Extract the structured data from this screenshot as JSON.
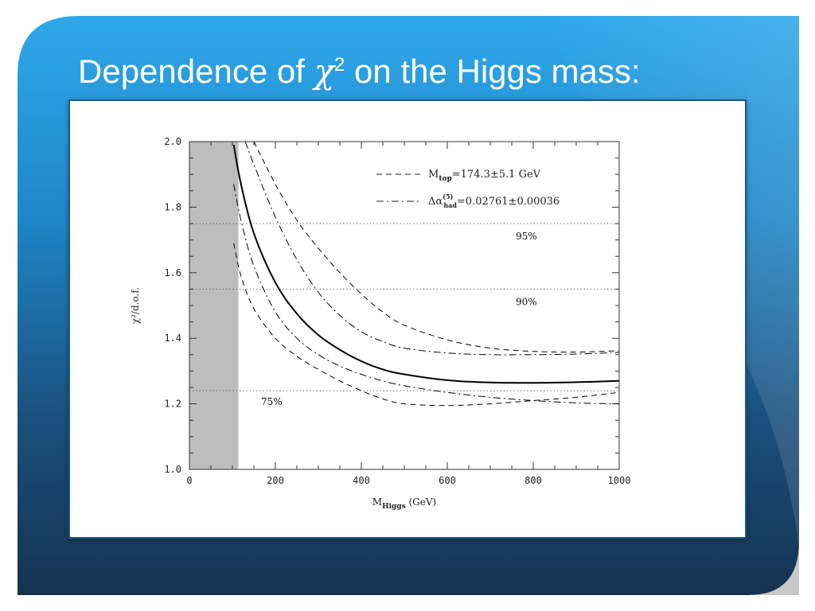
{
  "slide": {
    "title_text": "Dependence of ",
    "title_symbol": "χ",
    "title_sup": "2",
    "title_rest": " on the Higgs mass:"
  },
  "colors": {
    "background_top": "#2aa6e8",
    "background_bottom": "#153551",
    "panel_border": "#1a5a86",
    "excluded_region": "#bdbdbd",
    "curve": "#000000",
    "dotted_lines": "#555555"
  },
  "chart_data": {
    "type": "line",
    "xlabel": "M",
    "xlabel_sub": "Higgs",
    "xlabel_unit": "(GeV)",
    "ylabel": "χ²/d.o.f.",
    "xlim": [
      0,
      1000
    ],
    "ylim": [
      1.0,
      2.0
    ],
    "x_ticks": [
      0,
      200,
      400,
      600,
      800,
      1000
    ],
    "x_tick_labels": [
      "0",
      "200",
      "400",
      "600",
      "800",
      "1000"
    ],
    "y_ticks": [
      1.0,
      1.2,
      1.4,
      1.6,
      1.8,
      2.0
    ],
    "y_tick_labels": [
      "1.0",
      "1.2",
      "1.4",
      "1.6",
      "1.8",
      "2.0"
    ],
    "excluded_region": [
      0,
      114
    ],
    "confidence_levels": [
      {
        "label": "95%",
        "value": 1.75
      },
      {
        "label": "90%",
        "value": 1.55
      },
      {
        "label": "75%",
        "value": 1.24
      }
    ],
    "legend": {
      "placement": "top-right",
      "entries": [
        {
          "style": "dashed",
          "text": "M",
          "sub": "top",
          "rest": "=174.3±5.1 GeV"
        },
        {
          "style": "dashdot",
          "text": "Δα",
          "sup": "(5)",
          "sub": "had",
          "rest": "=0.02761±0.00036"
        }
      ]
    },
    "series": [
      {
        "style": "solid",
        "x": [
          103,
          120,
          150,
          200,
          250,
          300,
          350,
          400,
          450,
          500,
          600,
          700,
          800,
          900,
          1000
        ],
        "y": [
          1.99,
          1.87,
          1.72,
          1.57,
          1.475,
          1.41,
          1.365,
          1.33,
          1.305,
          1.29,
          1.272,
          1.265,
          1.264,
          1.266,
          1.27
        ]
      },
      {
        "style": "dashed",
        "x": [
          150,
          200,
          250,
          300,
          350,
          400,
          450,
          500,
          600,
          700,
          800,
          900,
          1000
        ],
        "y": [
          2.0,
          1.87,
          1.76,
          1.675,
          1.6,
          1.535,
          1.48,
          1.44,
          1.395,
          1.37,
          1.36,
          1.358,
          1.362
        ]
      },
      {
        "style": "dashed",
        "x": [
          103,
          120,
          150,
          200,
          250,
          300,
          350,
          400,
          450,
          500,
          600,
          700,
          800,
          900,
          1000
        ],
        "y": [
          1.69,
          1.59,
          1.49,
          1.4,
          1.345,
          1.305,
          1.27,
          1.24,
          1.215,
          1.2,
          1.195,
          1.2,
          1.21,
          1.22,
          1.235
        ]
      },
      {
        "style": "dashdot",
        "x": [
          130,
          150,
          200,
          250,
          300,
          350,
          400,
          450,
          500,
          600,
          700,
          800,
          900,
          1000
        ],
        "y": [
          2.0,
          1.93,
          1.77,
          1.64,
          1.54,
          1.47,
          1.42,
          1.39,
          1.37,
          1.355,
          1.35,
          1.35,
          1.352,
          1.357
        ]
      },
      {
        "style": "dashdot",
        "x": [
          103,
          120,
          150,
          200,
          250,
          300,
          350,
          400,
          450,
          500,
          600,
          700,
          800,
          900,
          1000
        ],
        "y": [
          1.87,
          1.76,
          1.62,
          1.48,
          1.4,
          1.35,
          1.315,
          1.29,
          1.27,
          1.255,
          1.235,
          1.22,
          1.21,
          1.203,
          1.2
        ]
      }
    ]
  }
}
